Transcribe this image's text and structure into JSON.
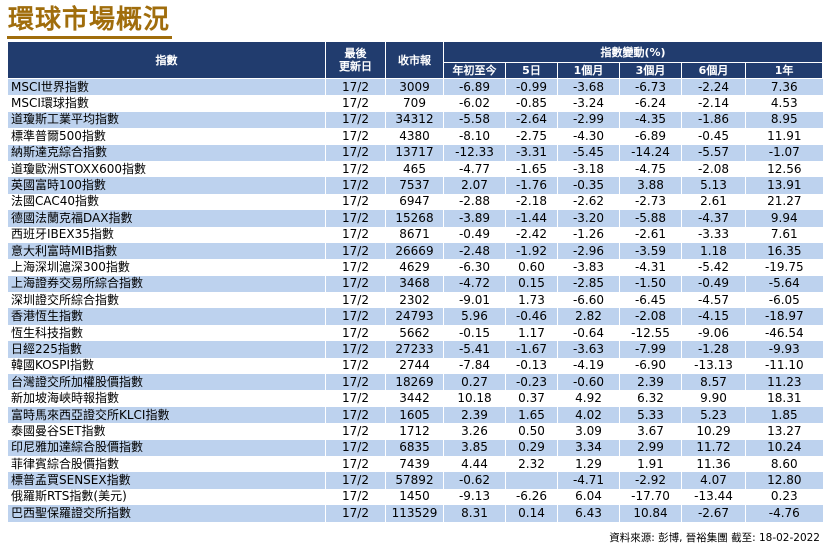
{
  "title": "環球市場概況",
  "headers": {
    "index": "指數",
    "last_update_l1": "最後",
    "last_update_l2": "更新日",
    "close": "收市報",
    "change_group": "指數變動(%)",
    "ytd": "年初至今",
    "d5": "5日",
    "m1": "1個月",
    "m3": "3個月",
    "m6": "6個月",
    "y1": "1年"
  },
  "rows": [
    {
      "name": "MSCI世界指數",
      "date": "17/2",
      "close": "3009",
      "ytd": "-6.89",
      "d5": "-0.99",
      "m1": "-3.68",
      "m3": "-6.73",
      "m6": "-2.24",
      "y1": "7.36"
    },
    {
      "name": "MSCI環球指數",
      "date": "17/2",
      "close": "709",
      "ytd": "-6.02",
      "d5": "-0.85",
      "m1": "-3.24",
      "m3": "-6.24",
      "m6": "-2.14",
      "y1": "4.53"
    },
    {
      "name": "道瓊斯工業平均指數",
      "date": "17/2",
      "close": "34312",
      "ytd": "-5.58",
      "d5": "-2.64",
      "m1": "-2.99",
      "m3": "-4.35",
      "m6": "-1.86",
      "y1": "8.95"
    },
    {
      "name": "標準普爾500指數",
      "date": "17/2",
      "close": "4380",
      "ytd": "-8.10",
      "d5": "-2.75",
      "m1": "-4.30",
      "m3": "-6.89",
      "m6": "-0.45",
      "y1": "11.91"
    },
    {
      "name": "納斯達克綜合指數",
      "date": "17/2",
      "close": "13717",
      "ytd": "-12.33",
      "d5": "-3.31",
      "m1": "-5.45",
      "m3": "-14.24",
      "m6": "-5.57",
      "y1": "-1.07"
    },
    {
      "name": "道瓊歐洲STOXX600指數",
      "date": "17/2",
      "close": "465",
      "ytd": "-4.77",
      "d5": "-1.65",
      "m1": "-3.18",
      "m3": "-4.75",
      "m6": "-2.08",
      "y1": "12.56"
    },
    {
      "name": "英國富時100指數",
      "date": "17/2",
      "close": "7537",
      "ytd": "2.07",
      "d5": "-1.76",
      "m1": "-0.35",
      "m3": "3.88",
      "m6": "5.13",
      "y1": "13.91"
    },
    {
      "name": "法國CAC40指數",
      "date": "17/2",
      "close": "6947",
      "ytd": "-2.88",
      "d5": "-2.18",
      "m1": "-2.62",
      "m3": "-2.73",
      "m6": "2.61",
      "y1": "21.27"
    },
    {
      "name": "德國法蘭克福DAX指數",
      "date": "17/2",
      "close": "15268",
      "ytd": "-3.89",
      "d5": "-1.44",
      "m1": "-3.20",
      "m3": "-5.88",
      "m6": "-4.37",
      "y1": "9.94"
    },
    {
      "name": "西班牙IBEX35指數",
      "date": "17/2",
      "close": "8671",
      "ytd": "-0.49",
      "d5": "-2.42",
      "m1": "-1.26",
      "m3": "-2.61",
      "m6": "-3.33",
      "y1": "7.61"
    },
    {
      "name": "意大利富時MIB指數",
      "date": "17/2",
      "close": "26669",
      "ytd": "-2.48",
      "d5": "-1.92",
      "m1": "-2.96",
      "m3": "-3.59",
      "m6": "1.18",
      "y1": "16.35"
    },
    {
      "name": "上海深圳滬深300指數",
      "date": "17/2",
      "close": "4629",
      "ytd": "-6.30",
      "d5": "0.60",
      "m1": "-3.83",
      "m3": "-4.31",
      "m6": "-5.42",
      "y1": "-19.75"
    },
    {
      "name": "上海證券交易所綜合指數",
      "date": "17/2",
      "close": "3468",
      "ytd": "-4.72",
      "d5": "0.15",
      "m1": "-2.85",
      "m3": "-1.50",
      "m6": "-0.49",
      "y1": "-5.64"
    },
    {
      "name": "深圳證交所綜合指數",
      "date": "17/2",
      "close": "2302",
      "ytd": "-9.01",
      "d5": "1.73",
      "m1": "-6.60",
      "m3": "-6.45",
      "m6": "-4.57",
      "y1": "-6.05"
    },
    {
      "name": "香港恆生指數",
      "date": "17/2",
      "close": "24793",
      "ytd": "5.96",
      "d5": "-0.46",
      "m1": "2.82",
      "m3": "-2.08",
      "m6": "-4.15",
      "y1": "-18.97"
    },
    {
      "name": "恆生科技指數",
      "date": "17/2",
      "close": "5662",
      "ytd": "-0.15",
      "d5": "1.17",
      "m1": "-0.64",
      "m3": "-12.55",
      "m6": "-9.06",
      "y1": "-46.54"
    },
    {
      "name": "日經225指數",
      "date": "17/2",
      "close": "27233",
      "ytd": "-5.41",
      "d5": "-1.67",
      "m1": "-3.63",
      "m3": "-7.99",
      "m6": "-1.28",
      "y1": "-9.93"
    },
    {
      "name": "韓國KOSPI指數",
      "date": "17/2",
      "close": "2744",
      "ytd": "-7.84",
      "d5": "-0.13",
      "m1": "-4.19",
      "m3": "-6.90",
      "m6": "-13.13",
      "y1": "-11.10"
    },
    {
      "name": "台灣證交所加權股價指數",
      "date": "17/2",
      "close": "18269",
      "ytd": "0.27",
      "d5": "-0.23",
      "m1": "-0.60",
      "m3": "2.39",
      "m6": "8.57",
      "y1": "11.23"
    },
    {
      "name": "新加坡海峽時報指數",
      "date": "17/2",
      "close": "3442",
      "ytd": "10.18",
      "d5": "0.37",
      "m1": "4.92",
      "m3": "6.32",
      "m6": "9.90",
      "y1": "18.31"
    },
    {
      "name": "富時馬來西亞證交所KLCI指數",
      "date": "17/2",
      "close": "1605",
      "ytd": "2.39",
      "d5": "1.65",
      "m1": "4.02",
      "m3": "5.33",
      "m6": "5.23",
      "y1": "1.85"
    },
    {
      "name": "泰國曼谷SET指數",
      "date": "17/2",
      "close": "1712",
      "ytd": "3.26",
      "d5": "0.50",
      "m1": "3.09",
      "m3": "3.67",
      "m6": "10.29",
      "y1": "13.27"
    },
    {
      "name": "印尼雅加達綜合股價指數",
      "date": "17/2",
      "close": "6835",
      "ytd": "3.85",
      "d5": "0.29",
      "m1": "3.34",
      "m3": "2.99",
      "m6": "11.72",
      "y1": "10.24"
    },
    {
      "name": "菲律賓綜合股價指數",
      "date": "17/2",
      "close": "7439",
      "ytd": "4.44",
      "d5": "2.32",
      "m1": "1.29",
      "m3": "1.91",
      "m6": "11.36",
      "y1": "8.60"
    },
    {
      "name": "標普孟買SENSEX指數",
      "date": "17/2",
      "close": "57892",
      "ytd": "-0.62",
      "d5": "",
      "m1": "-4.71",
      "m3": "-2.92",
      "m6": "4.07",
      "y1": "12.80"
    },
    {
      "name": "俄羅斯RTS指數(美元)",
      "date": "17/2",
      "close": "1450",
      "ytd": "-9.13",
      "d5": "-6.26",
      "m1": "6.04",
      "m3": "-17.70",
      "m6": "-13.44",
      "y1": "0.23"
    },
    {
      "name": "巴西聖保羅證交所指數",
      "date": "17/2",
      "close": "113529",
      "ytd": "8.31",
      "d5": "0.14",
      "m1": "6.43",
      "m3": "10.84",
      "m6": "-2.67",
      "y1": "-4.76"
    }
  ],
  "footer": "資料來源: 彭博, 晉裕集團 截至: 18-02-2022"
}
